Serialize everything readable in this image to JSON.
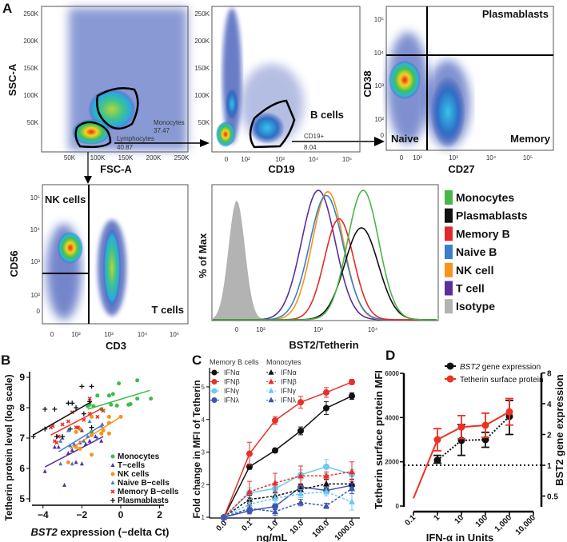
{
  "panel_labels": {
    "A": "A",
    "B": "B",
    "C": "C",
    "D": "D"
  },
  "flow_plots": [
    {
      "type": "scatter",
      "xlabel": "FSC-A",
      "ylabel": "SSC-A",
      "yticks": [
        "250K",
        "200K",
        "150K",
        "100K",
        "50K"
      ],
      "xticks": [
        "50K",
        "100K",
        "150K",
        "200K",
        "250K"
      ],
      "gates": [
        {
          "name": "Monocytes",
          "value": "37.47"
        },
        {
          "name": "Lymphocytes",
          "value": "40.87"
        }
      ]
    },
    {
      "type": "scatter",
      "xlabel": "CD19",
      "yticks": [
        "250K",
        "200K",
        "150K",
        "100K",
        "50K"
      ],
      "xticks": [
        "0",
        "10²",
        "10³",
        "10⁴",
        "10⁵"
      ],
      "population_label": "B cells",
      "gates": [
        {
          "name": "CD19+",
          "value": "8.04"
        }
      ]
    },
    {
      "type": "scatter",
      "xlabel": "CD27",
      "ylabel": "CD38",
      "yticks": [
        "10⁵",
        "10⁴",
        "10³",
        "10²",
        "0"
      ],
      "xticks": [
        "0",
        "10²",
        "10³",
        "10⁴",
        "10⁵"
      ],
      "quadrants": [
        "Plasmablasts",
        "Naive",
        "Memory"
      ]
    },
    {
      "type": "scatter",
      "xlabel": "CD3",
      "ylabel": "CD56",
      "yticks": [
        "10⁵",
        "10⁴",
        "10³",
        "10²",
        "0"
      ],
      "xticks": [
        "0",
        "10²",
        "10³",
        "10⁴",
        "10⁵"
      ],
      "quadrants": [
        "NK cells",
        "T cells"
      ]
    }
  ],
  "chart_data": [
    {
      "type": "line",
      "title": "",
      "xlabel": "BST2/Tetherin",
      "ylabel": "% of Max",
      "xticks": [
        "0",
        "10²",
        "10³",
        "10⁴"
      ],
      "legend_position": "right",
      "series": [
        {
          "name": "Monocytes",
          "color": "#4bb648",
          "peak_log10": 3.83,
          "peak_pct": 100,
          "spread_log10": 0.28
        },
        {
          "name": "Plasmablasts",
          "color": "#111111",
          "peak_log10": 3.8,
          "peak_pct": 71,
          "spread_log10": 0.3
        },
        {
          "name": "Memory B",
          "color": "#e02b2b",
          "peak_log10": 3.4,
          "peak_pct": 78,
          "spread_log10": 0.26
        },
        {
          "name": "Naive B",
          "color": "#3a7fc8",
          "peak_log10": 3.17,
          "peak_pct": 96,
          "spread_log10": 0.3
        },
        {
          "name": "NK cell",
          "color": "#f7931e",
          "peak_log10": 3.2,
          "peak_pct": 99,
          "spread_log10": 0.28
        },
        {
          "name": "T cell",
          "color": "#5b2e9a",
          "peak_log10": 3.03,
          "peak_pct": 100,
          "spread_log10": 0.3
        },
        {
          "name": "Isotype",
          "color": "#b3b3b3",
          "peak_log10": 0,
          "peak_pct": 92,
          "spread_log10": 0.17,
          "filled": true
        }
      ]
    },
    {
      "type": "scatter",
      "title": "",
      "xlabel_italic": "BST2",
      "xlabel": " expression (−delta Ct)",
      "ylabel": "Tetherin protein level (log scale)",
      "xlim": [
        -4.6,
        2.2
      ],
      "ylim": [
        4.9,
        9.2
      ],
      "xticks": [
        -4,
        -2,
        0,
        2
      ],
      "yticks": [
        5,
        6,
        7,
        8,
        9
      ],
      "legend_position": "bottom-right",
      "series": [
        {
          "name": "Monocytes",
          "color": "#3dbb4a",
          "marker": "circle",
          "points": [
            [
              -1.7,
              8.05
            ],
            [
              -1.6,
              8.1
            ],
            [
              -1.4,
              8.05
            ],
            [
              -1.2,
              8.4
            ],
            [
              -1.0,
              7.95
            ],
            [
              -0.6,
              8.4
            ],
            [
              -0.4,
              8.45
            ],
            [
              -0.1,
              8.8
            ],
            [
              -0.5,
              8.1
            ],
            [
              -0.2,
              8.07
            ],
            [
              0.4,
              8.1
            ],
            [
              0.5,
              8.12
            ],
            [
              0.85,
              8.9
            ],
            [
              0.85,
              8.3
            ],
            [
              1.55,
              8.3
            ],
            [
              -1.5,
              7.2
            ]
          ],
          "fit": [
            [
              -1.7,
              7.95
            ],
            [
              1.5,
              8.57
            ]
          ]
        },
        {
          "name": "T−cells",
          "color": "#5b2e9a",
          "marker": "triangle",
          "points": [
            [
              -3.9,
              5.9
            ],
            [
              -3.4,
              6.7
            ],
            [
              -3.2,
              6.7
            ],
            [
              -2.9,
              5.45
            ],
            [
              -2.7,
              6.5
            ],
            [
              -2.5,
              6.6
            ],
            [
              -2.3,
              6.2
            ],
            [
              -2.0,
              6.15
            ],
            [
              -2.1,
              6.85
            ],
            [
              -1.8,
              6.8
            ],
            [
              -1.6,
              6.9
            ],
            [
              -1.3,
              7.05
            ],
            [
              -1.0,
              6.9
            ],
            [
              -2.0,
              7.25
            ]
          ],
          "fit": [
            [
              -3.9,
              6.05
            ],
            [
              -0.9,
              7.05
            ]
          ]
        },
        {
          "name": "NK cells",
          "color": "#f7931e",
          "marker": "circle",
          "points": [
            [
              -2.7,
              6.2
            ],
            [
              -2.3,
              6.7
            ],
            [
              -2.1,
              6.65
            ],
            [
              -2.3,
              7.2
            ],
            [
              -2.1,
              7.3
            ],
            [
              -1.5,
              6.45
            ],
            [
              -1.5,
              7.1
            ],
            [
              -1.5,
              7.7
            ],
            [
              -1.0,
              7.15
            ],
            [
              -0.6,
              7.15
            ],
            [
              -0.6,
              7.7
            ],
            [
              -0.6,
              7.5
            ],
            [
              0.0,
              7.7
            ],
            [
              -0.9,
              7.25
            ]
          ],
          "fit": [
            [
              -2.6,
              6.65
            ],
            [
              0.0,
              7.7
            ]
          ]
        },
        {
          "name": "Naive B−cells",
          "color": "#4a7cc4",
          "marker": "triangle",
          "points": [
            [
              -3.1,
              6.15
            ],
            [
              -3.0,
              7.0
            ],
            [
              -3.1,
              6.9
            ],
            [
              -2.7,
              7.25
            ],
            [
              -2.6,
              6.75
            ],
            [
              -2.5,
              6.15
            ],
            [
              -2.4,
              6.8
            ],
            [
              -1.9,
              6.9
            ],
            [
              -1.7,
              7.05
            ],
            [
              -1.6,
              7.55
            ],
            [
              -1.0,
              7.4
            ],
            [
              -0.95,
              7.45
            ],
            [
              -1.2,
              7.0
            ]
          ],
          "fit": [
            [
              -3.2,
              6.55
            ],
            [
              -0.9,
              7.45
            ]
          ]
        },
        {
          "name": "Memory B−cells",
          "color": "#e8312a",
          "marker": "x",
          "points": [
            [
              -3.6,
              7.35
            ],
            [
              -3.5,
              7.4
            ],
            [
              -3.4,
              6.9
            ],
            [
              -3.3,
              6.85
            ],
            [
              -3.2,
              7.05
            ],
            [
              -3.0,
              7.45
            ],
            [
              -2.7,
              7.55
            ],
            [
              -2.5,
              7.85
            ],
            [
              -2.3,
              7.35
            ],
            [
              -2.2,
              7.35
            ],
            [
              -1.9,
              7.6
            ],
            [
              -1.6,
              7.8
            ],
            [
              -1.2,
              7.7
            ],
            [
              -0.9,
              7.9
            ],
            [
              -1.6,
              8.3
            ]
          ],
          "fit": [
            [
              -3.6,
              7.1
            ],
            [
              -0.9,
              8.0
            ]
          ]
        },
        {
          "name": "Plasmablasts",
          "color": "#111111",
          "marker": "plus",
          "points": [
            [
              -4.5,
              7.05
            ],
            [
              -3.9,
              7.95
            ],
            [
              -3.9,
              7.3
            ],
            [
              -3.4,
              7.95
            ],
            [
              -3.3,
              7.05
            ],
            [
              -3.0,
              7.05
            ],
            [
              -2.7,
              8.15
            ],
            [
              -2.5,
              8.15
            ],
            [
              -2.3,
              8.0
            ],
            [
              -2.0,
              8.7
            ],
            [
              -1.9,
              7.8
            ],
            [
              -1.6,
              8.2
            ],
            [
              -1.5,
              8.7
            ],
            [
              -1.5,
              7.35
            ],
            [
              -2.6,
              7.3
            ]
          ],
          "fit": [
            [
              -4.5,
              7.1
            ],
            [
              -1.5,
              8.2
            ]
          ]
        }
      ]
    },
    {
      "type": "line",
      "title": "",
      "xlabel": "ng/mL",
      "ylabel": "Fold change in MFI of Tetherin",
      "categories": [
        "0.0",
        "0.1",
        "1.0",
        "10.0",
        "100.0",
        "1000.0"
      ],
      "ylim": [
        1,
        5.4
      ],
      "yticks": [
        1,
        2,
        3,
        4,
        5
      ],
      "legend_position": "top-left",
      "legend_groups": [
        "Memory B cells",
        "Monocytes"
      ],
      "series": [
        {
          "group": "Memory B cells",
          "name": "IFNα",
          "color": "#111111",
          "marker": "circle",
          "dashed": false,
          "values": [
            1,
            2.55,
            3.05,
            3.65,
            4.35,
            4.72
          ],
          "error": [
            0,
            0.08,
            0.07,
            0.12,
            0.2,
            0.1
          ]
        },
        {
          "group": "Memory B cells",
          "name": "IFNβ",
          "color": "#e8312a",
          "marker": "circle",
          "dashed": false,
          "values": [
            1,
            2.95,
            3.97,
            4.53,
            4.83,
            5.15
          ],
          "error": [
            0,
            0.35,
            0.12,
            0.18,
            0.15,
            0.08
          ]
        },
        {
          "group": "Memory B cells",
          "name": "IFNγ",
          "color": "#6cc9f2",
          "marker": "circle",
          "dashed": false,
          "values": [
            1,
            1.75,
            1.88,
            2.3,
            2.55,
            2.32
          ],
          "error": [
            0,
            0.15,
            0.15,
            0.15,
            0.22,
            0.15
          ]
        },
        {
          "group": "Memory B cells",
          "name": "IFNλ",
          "color": "#3d55b0",
          "marker": "circle",
          "dashed": false,
          "values": [
            1,
            1.2,
            1.33,
            1.93,
            1.82,
            1.98
          ],
          "error": [
            0,
            0.1,
            0.1,
            0.1,
            0.1,
            0.12
          ]
        },
        {
          "group": "Monocytes",
          "name": "IFNα",
          "color": "#111111",
          "marker": "triangle",
          "dashed": true,
          "values": [
            1,
            1.55,
            1.65,
            1.85,
            2.02,
            2.02
          ],
          "error": [
            0,
            0.12,
            0.12,
            0.15,
            0.15,
            0.15
          ]
        },
        {
          "group": "Monocytes",
          "name": "IFNβ",
          "color": "#e8312a",
          "marker": "triangle",
          "dashed": true,
          "values": [
            1,
            1.78,
            2.05,
            2.27,
            2.27,
            2.4
          ],
          "error": [
            0,
            0.32,
            0.3,
            0.3,
            0.12,
            0.3
          ]
        },
        {
          "group": "Monocytes",
          "name": "IFNγ",
          "color": "#6cc9f2",
          "marker": "triangle",
          "dashed": true,
          "values": [
            1,
            1.4,
            1.58,
            1.72,
            1.78,
            1.47
          ],
          "error": [
            0,
            0.15,
            0.15,
            0.12,
            0.12,
            0.25
          ]
        },
        {
          "group": "Monocytes",
          "name": "IFNλ",
          "color": "#3d55b0",
          "marker": "triangle",
          "dashed": true,
          "values": [
            1,
            1.27,
            1.17,
            1.45,
            1.35,
            1.88
          ],
          "error": [
            0,
            0.1,
            0.12,
            0.1,
            0.08,
            0.15
          ]
        }
      ]
    },
    {
      "type": "line",
      "title": "",
      "xlabel": "IFN-α in Units",
      "ylabel_left": "Tetherin surface protein MFI",
      "ylabel_right": "BST2 gene expression",
      "xticks": [
        "0.1",
        "1",
        "10",
        "100",
        "1,000",
        "10,000"
      ],
      "yticks_left": [
        0,
        2000,
        4000,
        6000
      ],
      "yticks_right": [
        "0.5",
        "1",
        "2",
        "4",
        "8"
      ],
      "ylim_left": [
        0,
        6000
      ],
      "ylim_right": [
        0.5,
        8
      ],
      "reference_line_right": 1,
      "legend_position": "top",
      "series": [
        {
          "name_italic": "BST2",
          "name": " gene expression",
          "axis": "right",
          "color": "#111111",
          "dashed": true,
          "x": [
            1,
            10,
            100,
            1000
          ],
          "values": [
            1.12,
            1.75,
            1.78,
            3.0
          ],
          "low": [
            1.05,
            1.25,
            1.5,
            2.0
          ],
          "high": [
            1.25,
            2.5,
            2.1,
            4.3
          ]
        },
        {
          "name": "Tetherin surface protein",
          "axis": "left",
          "color": "#ee3124",
          "dashed": false,
          "x": [
            0.1,
            1,
            10,
            100,
            1000
          ],
          "values": [
            350,
            3000,
            3570,
            3650,
            4260
          ],
          "error": [
            0,
            500,
            520,
            550,
            600
          ]
        }
      ]
    }
  ]
}
